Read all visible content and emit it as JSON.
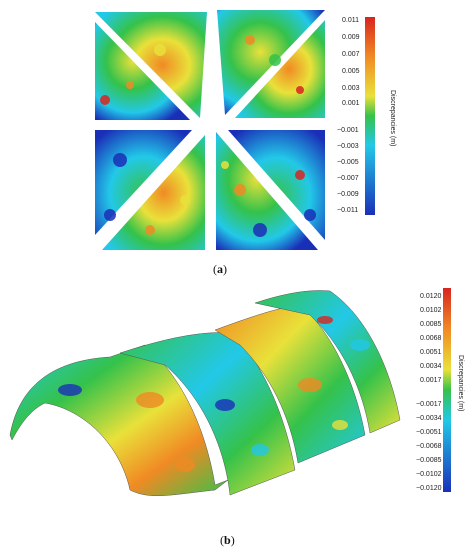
{
  "figure": {
    "panel_a": {
      "caption_letter": "a",
      "colorbar": {
        "title": "Discrepancies (m)",
        "ticks": [
          "0.011",
          "0.009",
          "0.007",
          "0.005",
          "0.003",
          "0.001",
          "−0.001",
          "−0.003",
          "−0.005",
          "−0.007",
          "−0.009",
          "−0.011"
        ]
      }
    },
    "panel_b": {
      "caption_letter": "b",
      "colorbar": {
        "title": "Discrepancies (m)",
        "ticks": [
          "0.0120",
          "0.0102",
          "0.0085",
          "0.0068",
          "0.0051",
          "0.0034",
          "0.0017",
          "−0.0017",
          "−0.0034",
          "−0.0051",
          "−0.0068",
          "−0.0085",
          "−0.0102",
          "−0.0120"
        ]
      }
    },
    "colors": {
      "dark_blue": "#1a2fb8",
      "cyan": "#22c8e8",
      "green": "#35c24a",
      "yellow": "#e9e13a",
      "orange": "#f08a24",
      "red": "#d8251f"
    }
  }
}
